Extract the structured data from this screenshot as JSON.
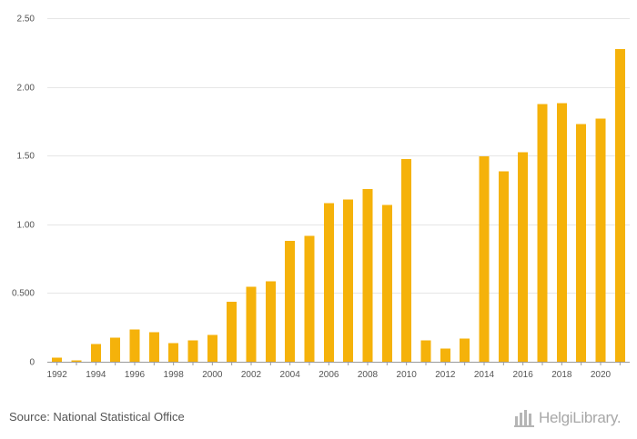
{
  "chart_data": {
    "type": "bar",
    "title": "",
    "xlabel": "",
    "ylabel": "",
    "categories": [
      "1992",
      "1993",
      "1994",
      "1995",
      "1996",
      "1997",
      "1998",
      "1999",
      "2000",
      "2001",
      "2002",
      "2003",
      "2004",
      "2005",
      "2006",
      "2007",
      "2008",
      "2009",
      "2010",
      "2011",
      "2012",
      "2013",
      "2014",
      "2015",
      "2016",
      "2017",
      "2018",
      "2019",
      "2020",
      "2021"
    ],
    "x_tick_labels": [
      "1992",
      "1994",
      "1996",
      "1998",
      "2000",
      "2002",
      "2004",
      "2006",
      "2008",
      "2010",
      "2012",
      "2014",
      "2016",
      "2018",
      "2020"
    ],
    "values": [
      0.03,
      0.01,
      0.13,
      0.175,
      0.235,
      0.215,
      0.135,
      0.155,
      0.195,
      0.435,
      0.545,
      0.585,
      0.88,
      0.915,
      1.155,
      1.18,
      1.255,
      1.14,
      1.475,
      0.155,
      0.095,
      0.17,
      1.495,
      1.385,
      1.525,
      1.875,
      1.88,
      1.73,
      1.77,
      2.275
    ],
    "ylim": [
      0,
      2.5
    ],
    "y_ticks": [
      0,
      0.5,
      1.0,
      1.5,
      2.0,
      2.5
    ],
    "y_tick_labels": [
      "0",
      "0.500",
      "1.00",
      "1.50",
      "2.00",
      "2.50"
    ],
    "grid": true,
    "bar_color": "#f5b20a"
  },
  "footer": {
    "source": "Source: National Statistical Office",
    "logo_text": "HelgiLibrary",
    "logo_dot": "."
  }
}
